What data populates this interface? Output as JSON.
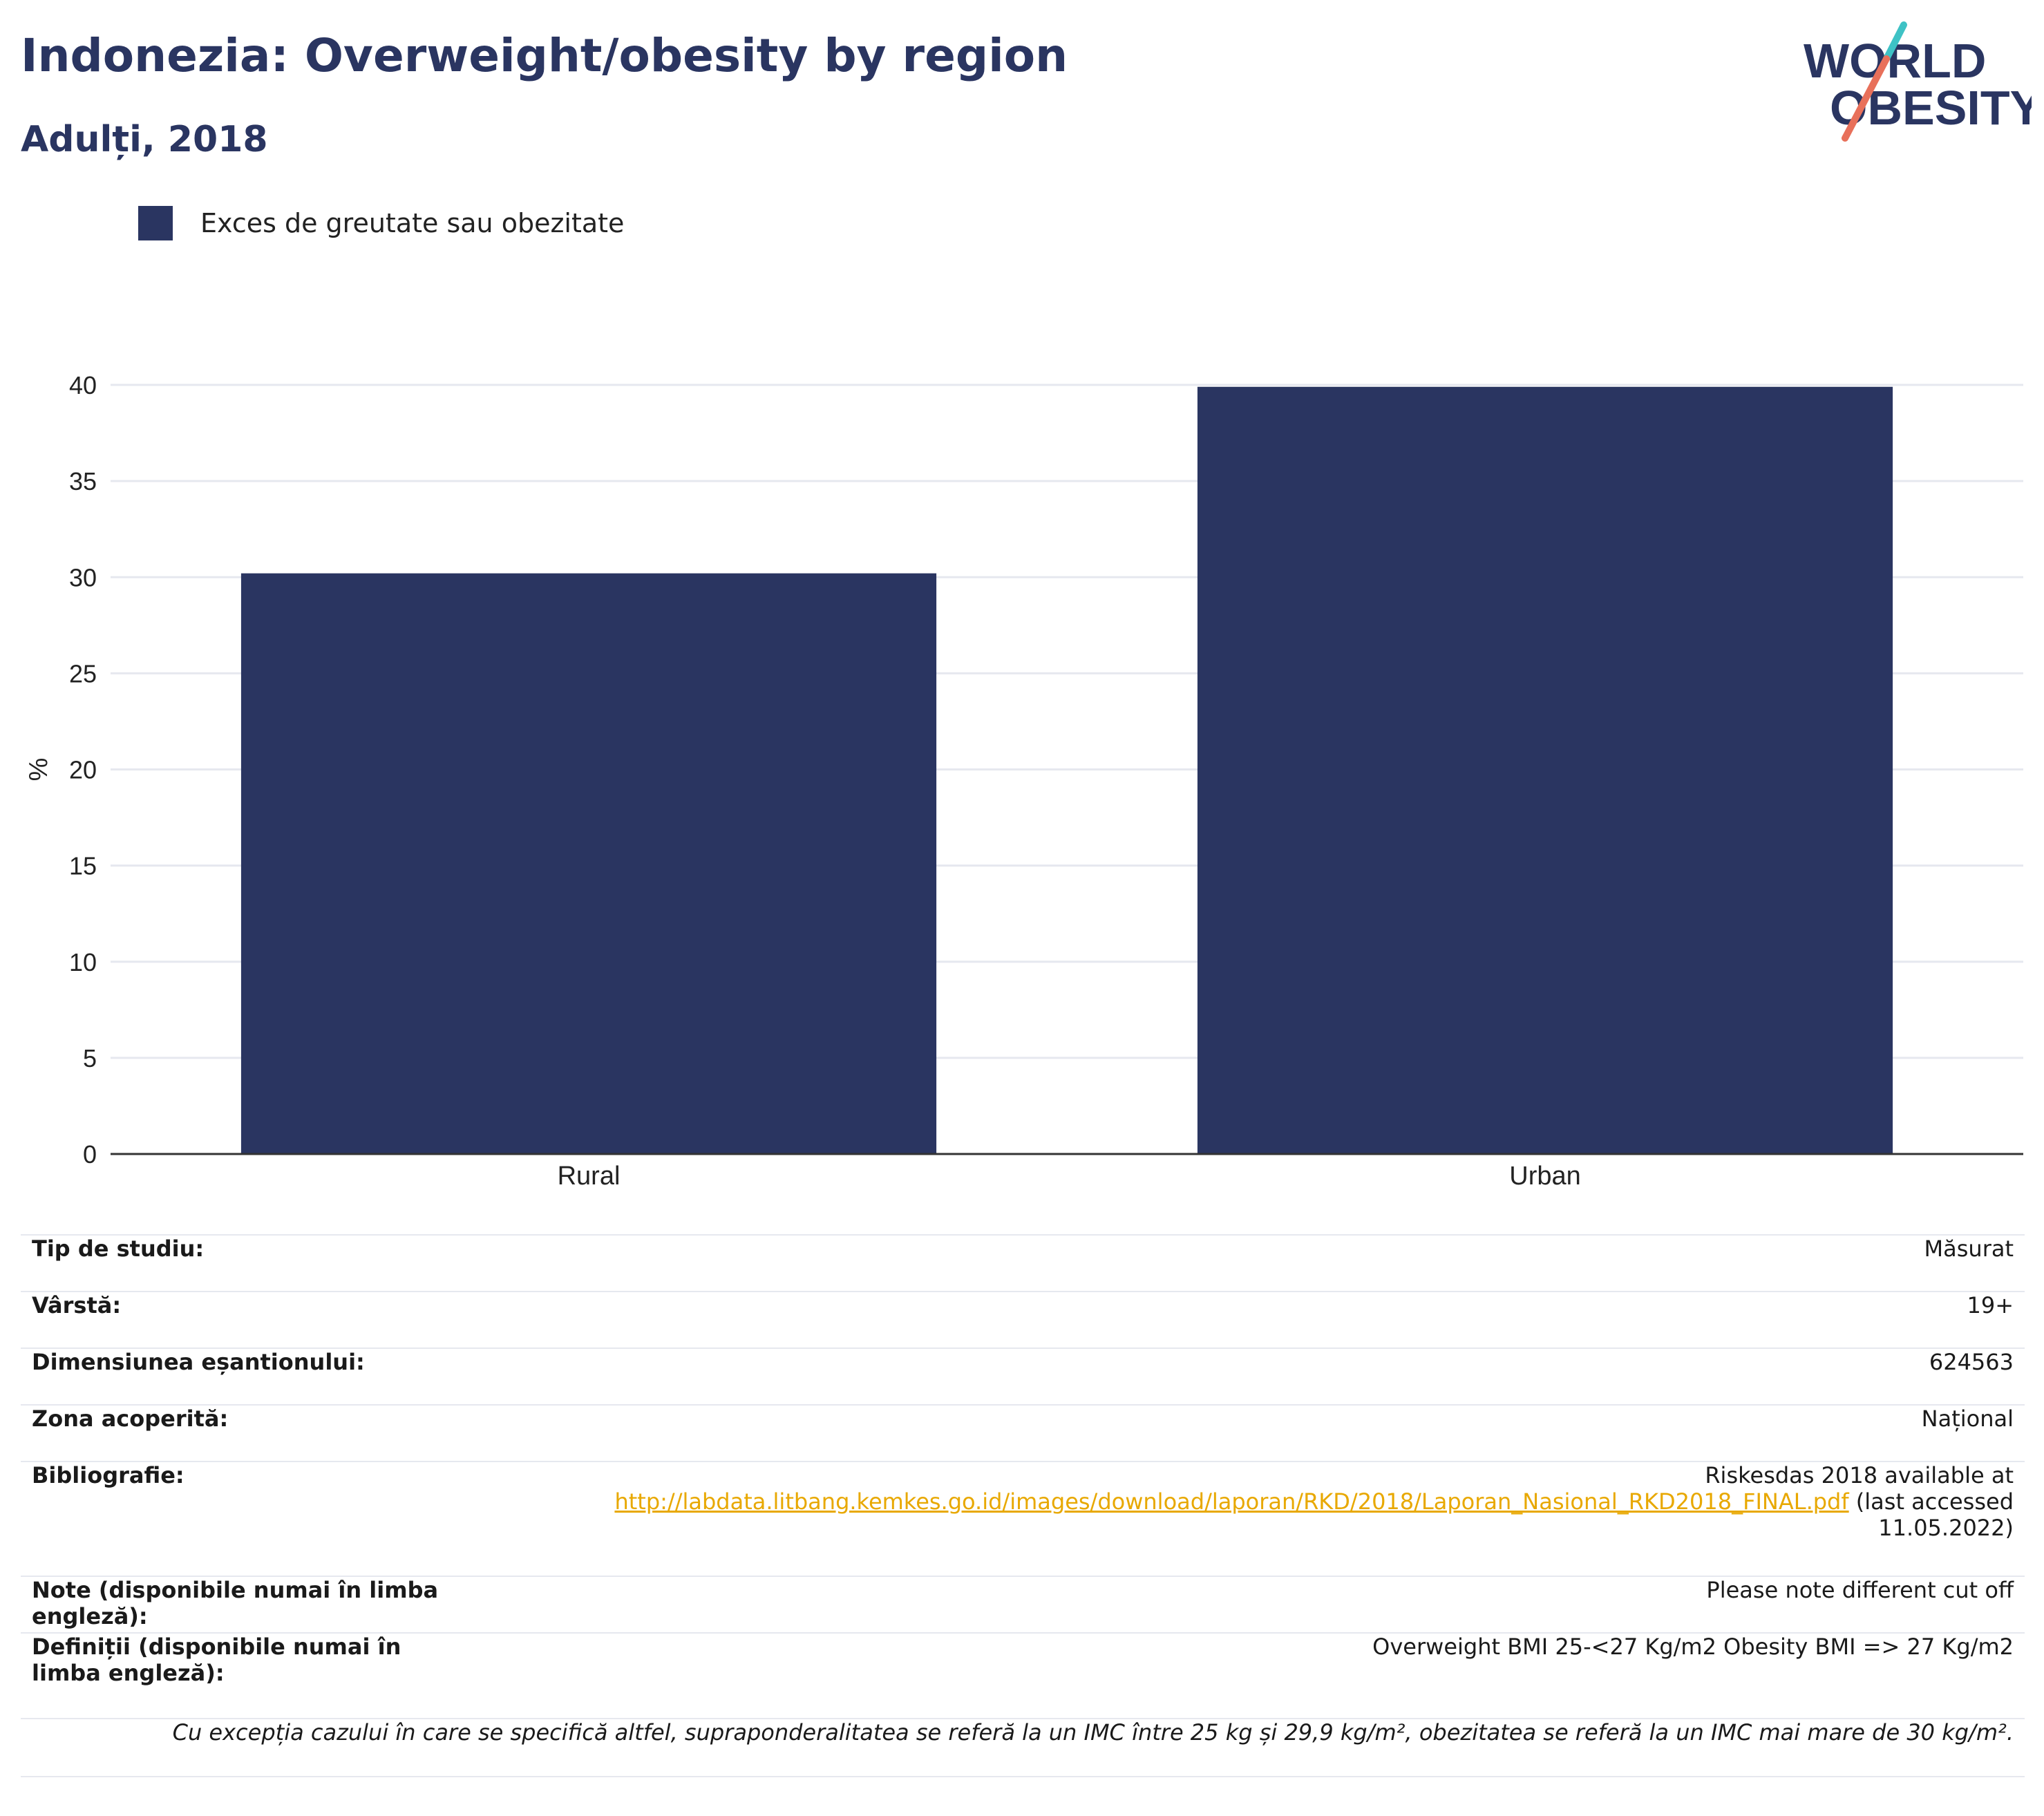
{
  "title": "Indonezia: Overweight/obesity by region",
  "subtitle": "Adulți, 2018",
  "logo": {
    "line1": "WORLD",
    "line2": "OBESITY",
    "slash_colors": [
      "#e8705a",
      "#3ec2c5"
    ],
    "text_color": "#2a3561"
  },
  "colors": {
    "bar": "#2a3561",
    "grid": "#e6e8ef",
    "axis": "#333333"
  },
  "chart_data": {
    "type": "bar",
    "categories": [
      "Rural",
      "Urban"
    ],
    "series": [
      {
        "name": "Exces de greutate sau obezitate",
        "values": [
          30.2,
          39.9
        ]
      }
    ],
    "ylabel": "%",
    "xlabel": "",
    "ylim": [
      0,
      40
    ],
    "yticks": [
      0,
      5,
      10,
      15,
      20,
      25,
      30,
      35,
      40
    ],
    "grid": true,
    "legend": "top-left"
  },
  "meta": [
    {
      "label": "Tip de studiu:",
      "value": "Măsurat"
    },
    {
      "label": "Vârstă:",
      "value": "19+"
    },
    {
      "label": "Dimensiunea eșantionului:",
      "value": "624563"
    },
    {
      "label": "Zona acoperită:",
      "value": "Național"
    },
    {
      "label": "Bibliografie:",
      "value_prefix": "Riskesdas 2018 available at",
      "link": "http://labdata.litbang.kemkes.go.id/images/download/laporan/RKD/2018/Laporan_Nasional_RKD2018_FINAL.pdf",
      "value_suffix": "(last accessed",
      "value_suffix2": "11.05.2022)"
    },
    {
      "label": "Note (disponibile numai în limba engleză):",
      "value": "Please note different cut off"
    },
    {
      "label": "Definiții (disponibile numai în limba engleză):",
      "value": "Overweight BMI 25-<27 Kg/m2 Obesity BMI => 27 Kg/m2"
    }
  ],
  "footnote": "Cu excepția cazului în care se specifică altfel, supraponderalitatea se referă la un IMC între 25 kg și 29,9 kg/m², obezitatea se referă la un IMC mai mare de 30 kg/m²."
}
